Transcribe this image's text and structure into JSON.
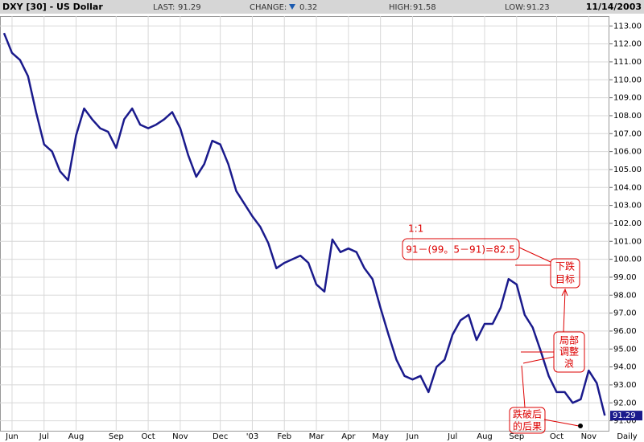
{
  "chart_data": {
    "type": "line",
    "title": "DXY [30] - US Dollar",
    "stats": [
      {
        "label": "LAST:",
        "value": 91.29
      },
      {
        "label": "CHANGE:",
        "value": 0.32
      },
      {
        "label": "HIGH:",
        "value": 91.58
      },
      {
        "label": "LOW:",
        "value": 91.23
      }
    ],
    "date": "11/14/2003",
    "period_label": "Daily",
    "color": "#1a1a8c",
    "grid": true,
    "categories": [
      null,
      "Jun",
      null,
      null,
      null,
      "Jul",
      null,
      null,
      null,
      "Aug",
      null,
      null,
      null,
      null,
      "Sep",
      null,
      null,
      null,
      "Oct",
      null,
      null,
      null,
      "Nov",
      null,
      null,
      null,
      null,
      "Dec",
      null,
      null,
      null,
      "'03",
      null,
      null,
      null,
      "Feb",
      null,
      null,
      null,
      "Mar",
      null,
      null,
      null,
      "Apr",
      null,
      null,
      null,
      "May",
      null,
      null,
      null,
      "Jun",
      null,
      null,
      null,
      null,
      "Jul",
      null,
      null,
      null,
      "Aug",
      null,
      null,
      null,
      "Sep",
      null,
      null,
      null,
      null,
      "Oct",
      null,
      null,
      null,
      "Nov",
      null,
      null
    ],
    "values": [
      112.6,
      111.5,
      111.1,
      110.2,
      108.2,
      106.4,
      106.0,
      104.9,
      104.4,
      106.9,
      108.4,
      107.8,
      107.3,
      107.1,
      106.2,
      107.8,
      108.4,
      107.5,
      107.3,
      107.5,
      107.8,
      108.2,
      107.3,
      105.8,
      104.6,
      105.3,
      106.6,
      106.4,
      105.3,
      103.8,
      103.1,
      102.4,
      101.8,
      100.9,
      99.5,
      99.8,
      100.0,
      100.2,
      99.8,
      98.6,
      98.2,
      101.1,
      100.4,
      100.6,
      100.4,
      99.5,
      98.9,
      97.3,
      95.8,
      94.4,
      93.5,
      93.3,
      93.5,
      92.6,
      94.0,
      94.4,
      95.8,
      96.6,
      96.9,
      95.5,
      96.4,
      96.4,
      97.3,
      98.9,
      98.6,
      96.9,
      96.2,
      94.9,
      93.5,
      92.6,
      92.6,
      92.0,
      92.2,
      93.8,
      93.1,
      91.29
    ],
    "ylim": [
      90.4,
      113.55
    ],
    "yticks": [
      {
        "value": 91,
        "label": "91.00"
      },
      {
        "value": 92,
        "label": "92.00"
      },
      {
        "value": 93,
        "label": "93.00"
      },
      {
        "value": 94,
        "label": "94.00"
      },
      {
        "value": 95,
        "label": "95.00"
      },
      {
        "value": 96,
        "label": "96.00"
      },
      {
        "value": 97,
        "label": "97.00"
      },
      {
        "value": 98,
        "label": "98.00"
      },
      {
        "value": 99,
        "label": "99.00"
      },
      {
        "value": 100,
        "label": "100.00"
      },
      {
        "value": 101,
        "label": "101.00"
      },
      {
        "value": 102,
        "label": "102.00"
      },
      {
        "value": 103,
        "label": "103.00"
      },
      {
        "value": 104,
        "label": "104.00"
      },
      {
        "value": 105,
        "label": "105.00"
      },
      {
        "value": 106,
        "label": "106.00"
      },
      {
        "value": 107,
        "label": "107.00"
      },
      {
        "value": 108,
        "label": "108.00"
      },
      {
        "value": 109,
        "label": "109.00"
      },
      {
        "value": 110,
        "label": "110.00"
      },
      {
        "value": 111,
        "label": "111.00"
      },
      {
        "value": 112,
        "label": "112.00"
      },
      {
        "value": 113,
        "label": "113.00"
      }
    ],
    "annotations": {
      "ratio": "1:1",
      "formula": "91－(99。5－91)=82.5",
      "target": [
        "下跌",
        "目标"
      ],
      "correction": [
        "局部",
        "调整",
        "浪"
      ],
      "breakdown": [
        "跌破后",
        "的后果"
      ]
    }
  }
}
